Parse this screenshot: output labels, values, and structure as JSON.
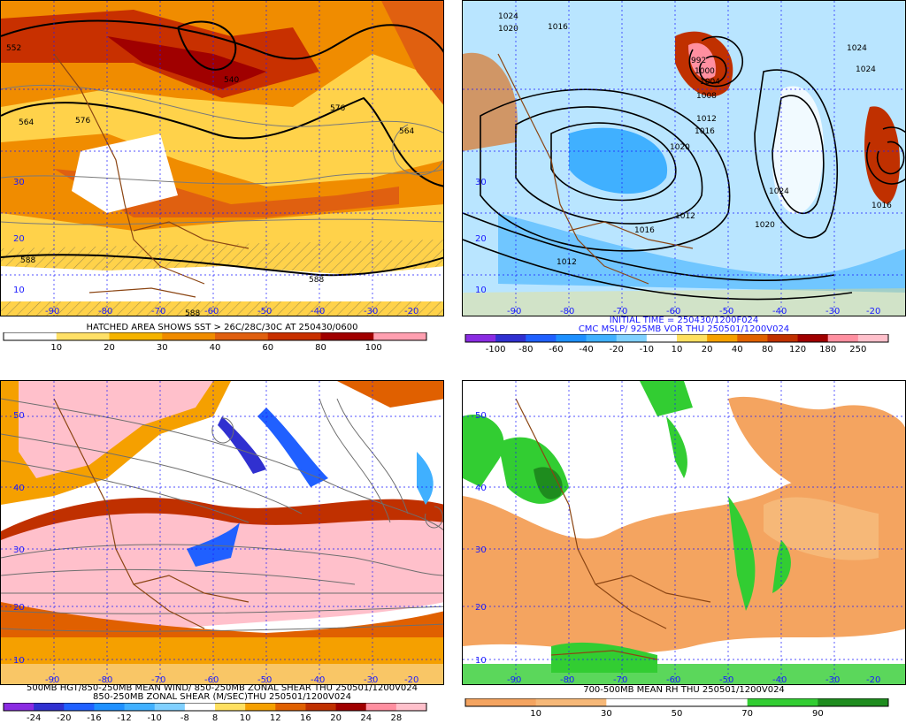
{
  "panels": [
    {
      "id": "tl",
      "caption_lines": [
        "HATCHED AREA SHOWS SST > 26C/28C/30C AT 250430/0600"
      ],
      "colorbar": {
        "ticks": [
          "10",
          "20",
          "30",
          "40",
          "60",
          "80",
          "100"
        ],
        "colors": [
          "#ffffff",
          "#ffe066",
          "#f5b400",
          "#f08c00",
          "#e06010",
          "#c83000",
          "#a00000",
          "#ff9fb0"
        ]
      },
      "contour_labels": [
        "552",
        "540",
        "564",
        "576",
        "564",
        "576",
        "588",
        "588",
        "588"
      ],
      "lat_labels": [
        "30",
        "20",
        "10"
      ],
      "lon_labels": [
        "-90",
        "-80",
        "-70",
        "-60",
        "-50",
        "-40",
        "-30",
        "-20"
      ]
    },
    {
      "id": "tr",
      "caption_lines": [
        "INITIAL TIME = 250430/1200F024",
        "CMC MSLP/ 925MB VOR THU 250501/1200V024"
      ],
      "colorbar": {
        "ticks": [
          "-100",
          "-80",
          "-60",
          "-40",
          "-20",
          "-10",
          "10",
          "20",
          "40",
          "80",
          "120",
          "180",
          "250"
        ],
        "colors": [
          "#8a2be2",
          "#3030d0",
          "#2060ff",
          "#1e90ff",
          "#40b0ff",
          "#80d0ff",
          "#ffffff",
          "#ffe060",
          "#f5a000",
          "#e06000",
          "#c03000",
          "#a00000",
          "#ff8fa0",
          "#ffc0cb"
        ]
      },
      "contour_labels": [
        "1024",
        "1020",
        "1016",
        "992",
        "1000",
        "1004",
        "1008",
        "1012",
        "1016",
        "1020",
        "1024",
        "1024",
        "1016",
        "1020",
        "1012",
        "1016",
        "1012",
        "1024"
      ],
      "lat_labels": [
        "30",
        "20",
        "10"
      ],
      "lon_labels": [
        "-90",
        "-80",
        "-70",
        "-60",
        "-50",
        "-40",
        "-30",
        "-20"
      ]
    },
    {
      "id": "bl",
      "caption_lines": [
        "500MB HGT/850-250MB MEAN WIND/ 850-250MB ZONAL SHEAR THU 250501/1200V024",
        "850-250MB ZONAL SHEAR (M/SEC)THU 250501/1200V024"
      ],
      "colorbar": {
        "ticks": [
          "-24",
          "-20",
          "-16",
          "-12",
          "-10",
          "-8",
          "8",
          "10",
          "12",
          "16",
          "20",
          "24",
          "28"
        ],
        "colors": [
          "#8a2be2",
          "#3030d0",
          "#2060ff",
          "#1e90ff",
          "#40b0ff",
          "#80d0ff",
          "#ffffff",
          "#ffe060",
          "#f5a000",
          "#e06000",
          "#c03000",
          "#a00000",
          "#ff8fa0",
          "#ffc0cb"
        ]
      },
      "lat_labels": [
        "50",
        "40",
        "30",
        "20",
        "10"
      ],
      "lon_labels": [
        "-90",
        "-80",
        "-70",
        "-60",
        "-50",
        "-40",
        "-30",
        "-20"
      ]
    },
    {
      "id": "br",
      "caption_lines": [
        "700-500MB MEAN RH THU 250501/1200V024"
      ],
      "colorbar": {
        "ticks": [
          "10",
          "30",
          "50",
          "70",
          "90"
        ],
        "colors": [
          "#f4a460",
          "#f6b878",
          "#ffffff",
          "#ffffff",
          "#32cd32",
          "#1e8c1e"
        ]
      },
      "lat_labels": [
        "50",
        "40",
        "30",
        "20",
        "10"
      ],
      "lon_labels": [
        "-90",
        "-80",
        "-70",
        "-60",
        "-50",
        "-40",
        "-30",
        "-20"
      ]
    }
  ]
}
